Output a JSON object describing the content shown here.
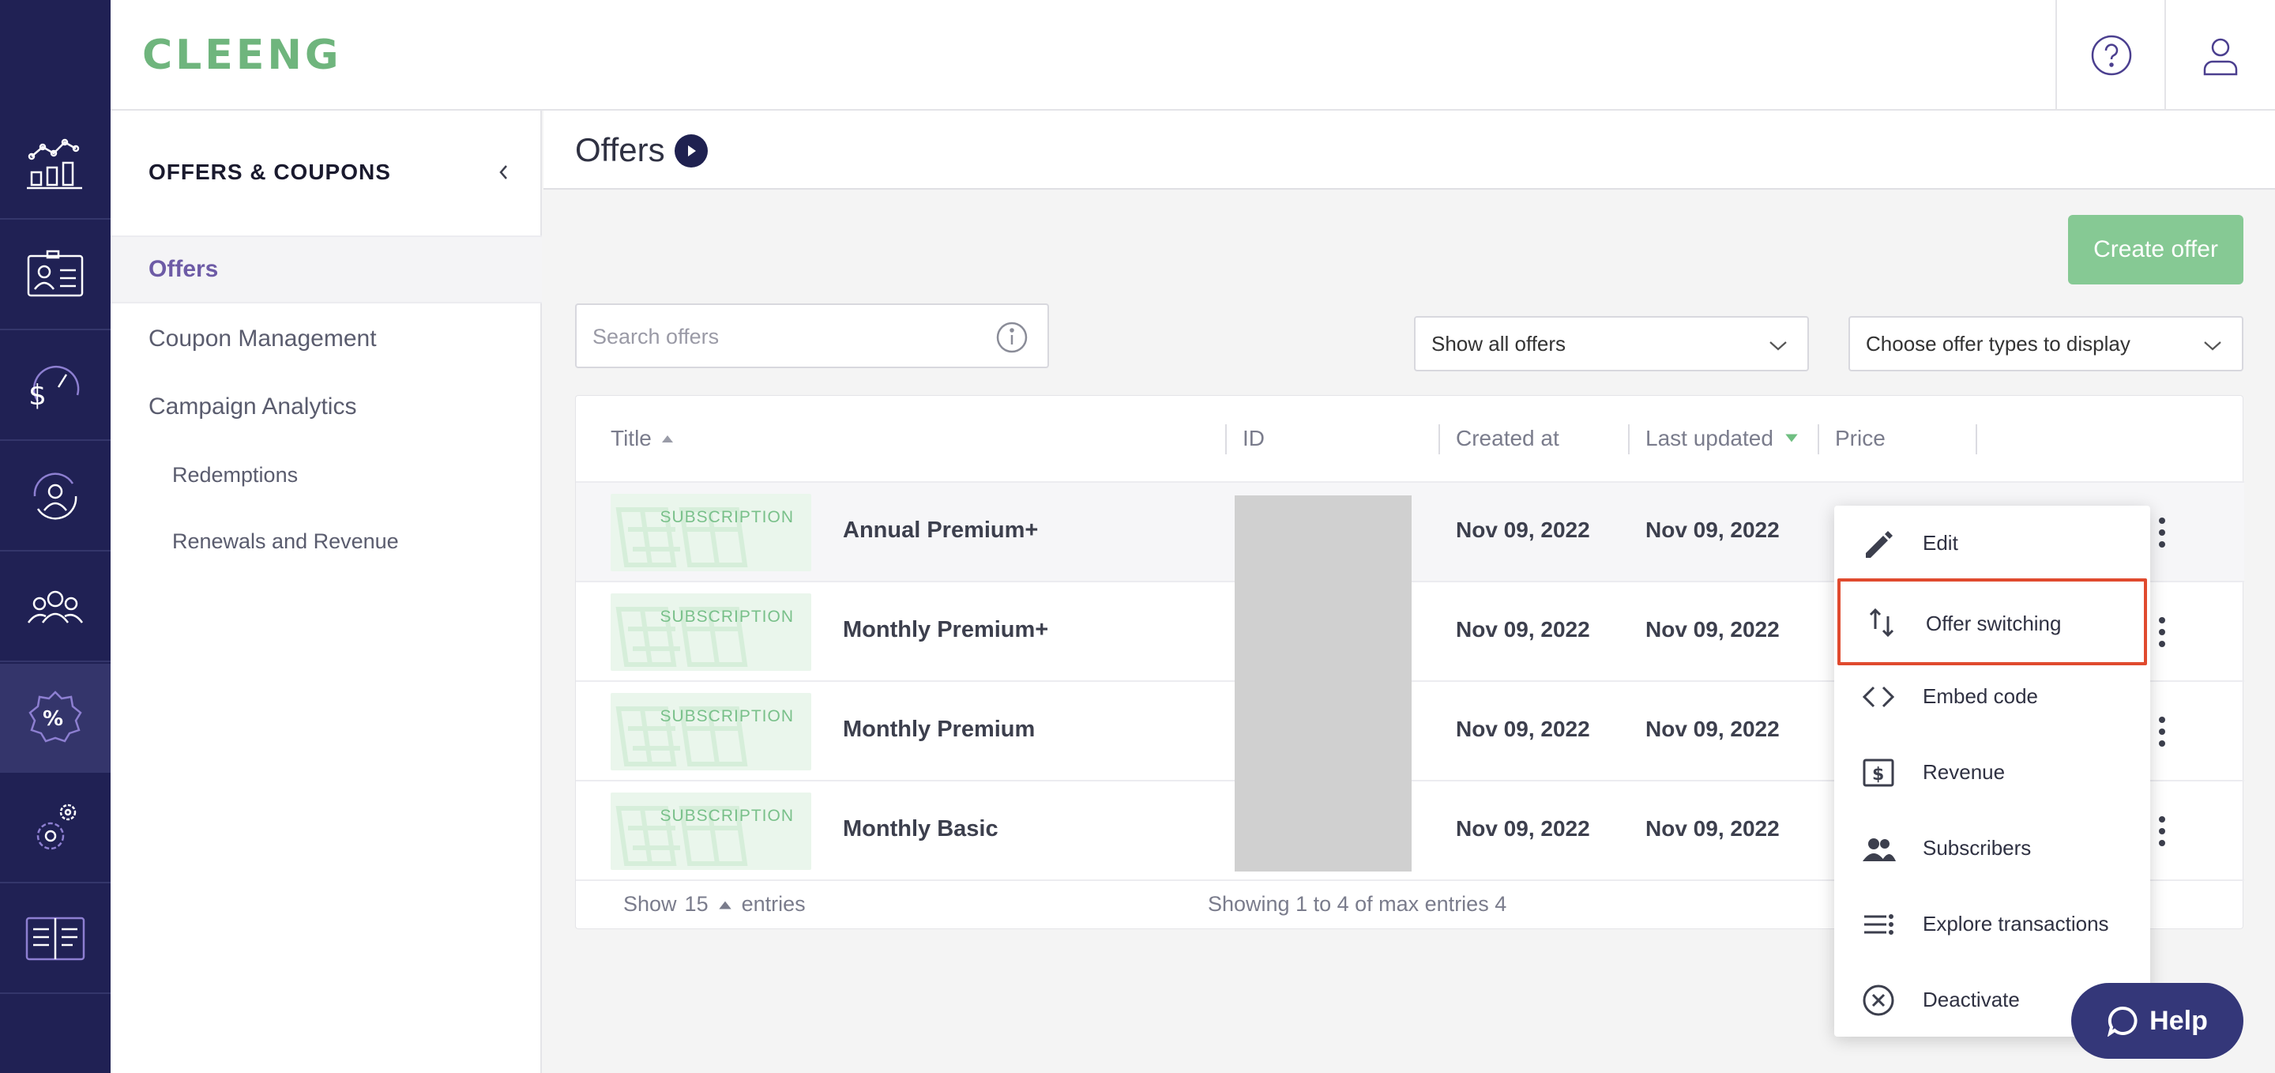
{
  "brand": {
    "logo_text": "CLEENG",
    "logo_color": "#6fb57d",
    "rail_color": "#202154"
  },
  "rail": {
    "items": [
      {
        "icon": "analytics-chart-icon"
      },
      {
        "icon": "id-card-icon"
      },
      {
        "icon": "revenue-speedometer-icon"
      },
      {
        "icon": "customer-retention-icon"
      },
      {
        "icon": "users-icon"
      },
      {
        "icon": "offers-percent-badge-icon",
        "active": true
      },
      {
        "icon": "settings-gears-icon"
      },
      {
        "icon": "documentation-book-icon"
      }
    ]
  },
  "topbar": {
    "help_icon": "question-circle-icon",
    "user_icon": "user-profile-icon"
  },
  "sidebar": {
    "title": "OFFERS & COUPONS",
    "items": [
      {
        "label": "Offers",
        "active": true
      },
      {
        "label": "Coupon Management"
      },
      {
        "label": "Campaign Analytics"
      }
    ],
    "sub_items": [
      {
        "label": "Redemptions"
      },
      {
        "label": "Renewals and Revenue"
      }
    ]
  },
  "main": {
    "title": "Offers",
    "create_label": "Create offer",
    "search": {
      "placeholder": "Search offers",
      "value": ""
    },
    "filter_status": "Show all offers",
    "filter_type": "Choose offer types to display"
  },
  "table": {
    "columns": [
      "Title",
      "ID",
      "Created at",
      "Last updated",
      "Price"
    ],
    "rows": [
      {
        "tag": "SUBSCRIPTION",
        "title": "Annual Premium+",
        "created": "Nov 09, 2022",
        "updated": "Nov 09, 2022"
      },
      {
        "tag": "SUBSCRIPTION",
        "title": "Monthly Premium+",
        "created": "Nov 09, 2022",
        "updated": "Nov 09, 2022"
      },
      {
        "tag": "SUBSCRIPTION",
        "title": "Monthly Premium",
        "created": "Nov 09, 2022",
        "updated": "Nov 09, 2022"
      },
      {
        "tag": "SUBSCRIPTION",
        "title": "Monthly Basic",
        "created": "Nov 09, 2022",
        "updated": "Nov 09, 2022"
      }
    ],
    "footer": {
      "show": "Show",
      "page_size": "15",
      "entries": "entries",
      "summary": "Showing 1 to 4 of max entries 4"
    }
  },
  "menu": {
    "items": [
      {
        "label": "Edit",
        "icon": "pencil-icon"
      },
      {
        "label": "Offer switching",
        "icon": "swap-arrows-icon",
        "highlighted": true
      },
      {
        "label": "Embed code",
        "icon": "code-brackets-icon"
      },
      {
        "label": "Revenue",
        "icon": "dollar-bill-icon"
      },
      {
        "label": "Subscribers",
        "icon": "people-icon"
      },
      {
        "label": "Explore transactions",
        "icon": "list-icon"
      },
      {
        "label": "Deactivate",
        "icon": "x-circle-icon"
      }
    ]
  },
  "help": {
    "label": "Help",
    "icon": "chat-bubble-icon"
  }
}
